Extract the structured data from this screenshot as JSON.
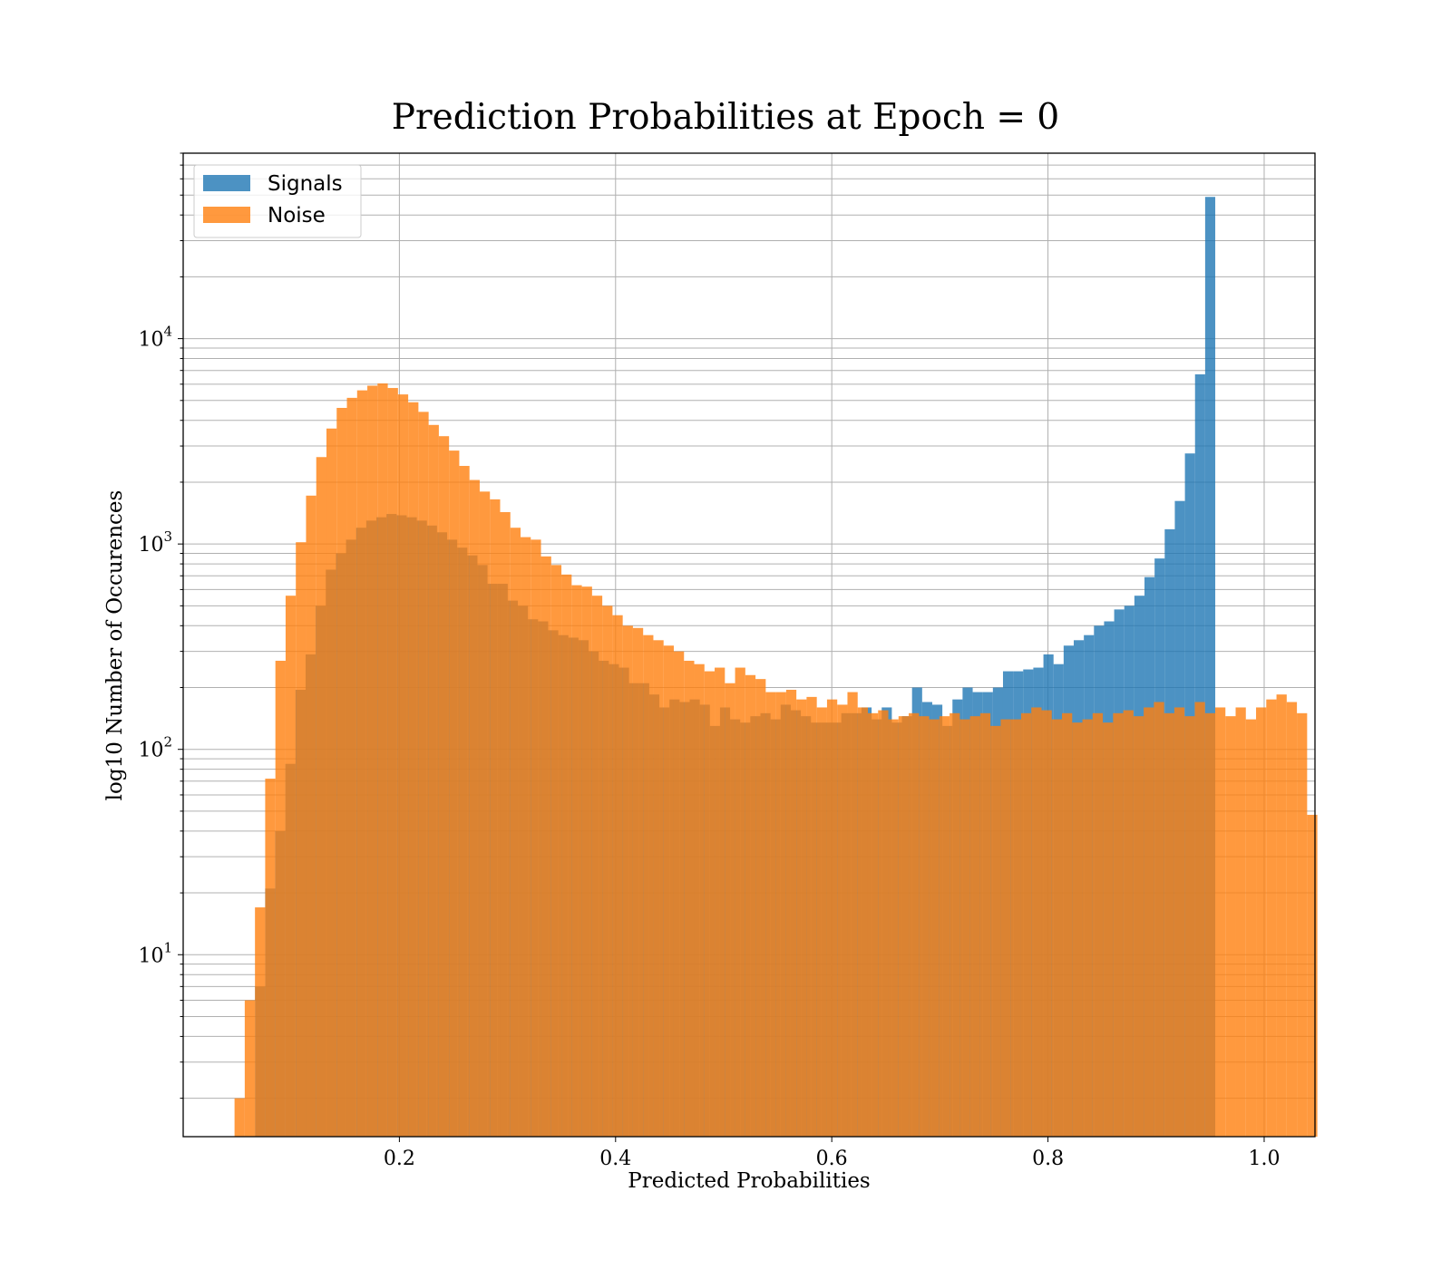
{
  "chart_data": {
    "type": "bar",
    "title": "Prediction Probabilities at Epoch = 0",
    "xlabel": "Predicted Probabilities",
    "ylabel": "log10 Number of Occurences",
    "xlim": [
      0.0,
      1.047
    ],
    "ylim": [
      1.3,
      80000
    ],
    "yscale": "log",
    "grid": true,
    "legend_position": "top-left",
    "xticks": [
      {
        "value": 0.2,
        "label": "0.2"
      },
      {
        "value": 0.4,
        "label": "0.4"
      },
      {
        "value": 0.6,
        "label": "0.6"
      },
      {
        "value": 0.8,
        "label": "0.8"
      },
      {
        "value": 1.0,
        "label": "1.0"
      }
    ],
    "yticks": [
      {
        "value": 10,
        "base": "10",
        "exp": "1"
      },
      {
        "value": 100,
        "base": "10",
        "exp": "2"
      },
      {
        "value": 1000,
        "base": "10",
        "exp": "3"
      },
      {
        "value": 10000,
        "base": "10",
        "exp": "4"
      }
    ],
    "series": [
      {
        "name": "Signals",
        "color": "#1f77b4",
        "alpha": 0.8,
        "bin_start": 0.0665,
        "bin_width": 0.00935,
        "values": [
          7,
          21,
          40,
          85,
          195,
          290,
          500,
          750,
          900,
          1050,
          1200,
          1300,
          1350,
          1400,
          1380,
          1350,
          1300,
          1230,
          1140,
          1050,
          960,
          880,
          790,
          640,
          640,
          530,
          500,
          430,
          420,
          380,
          360,
          350,
          340,
          300,
          270,
          260,
          250,
          210,
          210,
          185,
          160,
          175,
          170,
          175,
          165,
          130,
          160,
          140,
          135,
          145,
          150,
          140,
          165,
          155,
          145,
          135,
          135,
          135,
          150,
          150,
          160,
          140,
          160,
          135,
          145,
          200,
          170,
          165,
          130,
          175,
          200,
          190,
          190,
          200,
          240,
          240,
          245,
          250,
          290,
          260,
          320,
          340,
          360,
          400,
          420,
          480,
          500,
          560,
          690,
          850,
          1180,
          1620,
          2760,
          6700,
          49000
        ]
      },
      {
        "name": "Noise",
        "color": "#ff7f0e",
        "alpha": 0.8,
        "bin_start": 0.0475,
        "bin_width": 0.00945,
        "values": [
          2,
          6,
          17,
          72,
          270,
          560,
          1020,
          1720,
          2650,
          3650,
          4600,
          5150,
          5600,
          5900,
          6050,
          5750,
          5350,
          4900,
          4400,
          3800,
          3350,
          2850,
          2400,
          2050,
          1800,
          1650,
          1430,
          1200,
          1080,
          1050,
          870,
          790,
          710,
          630,
          620,
          560,
          500,
          450,
          400,
          390,
          360,
          340,
          320,
          300,
          270,
          260,
          240,
          250,
          210,
          250,
          230,
          220,
          190,
          190,
          195,
          175,
          180,
          160,
          175,
          165,
          190,
          160,
          150,
          155,
          140,
          145,
          150,
          145,
          140,
          145,
          150,
          140,
          145,
          150,
          130,
          140,
          140,
          150,
          160,
          155,
          140,
          150,
          135,
          140,
          150,
          135,
          150,
          155,
          145,
          160,
          170,
          150,
          160,
          145,
          170,
          150,
          160,
          145,
          160,
          140,
          160,
          175,
          185,
          170,
          150,
          48
        ]
      }
    ]
  }
}
